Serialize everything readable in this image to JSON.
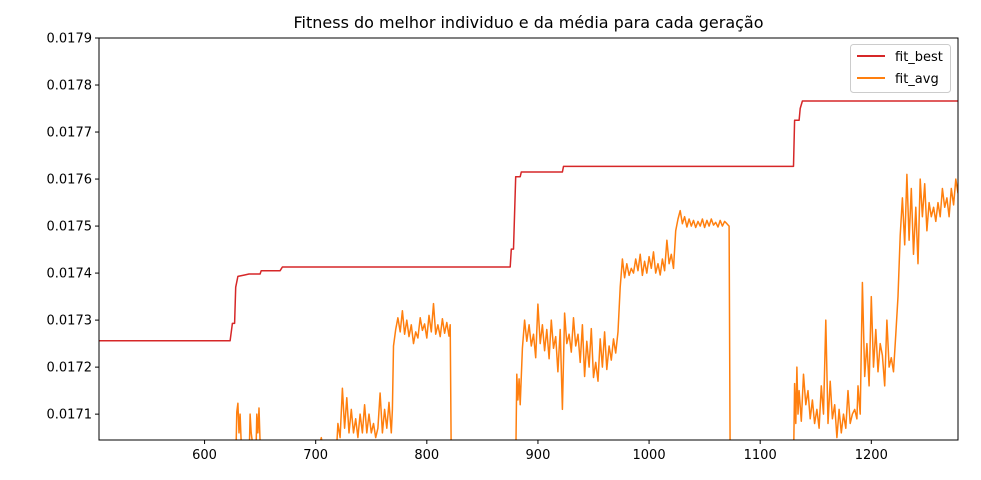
{
  "chart_data": {
    "type": "line",
    "title": "Fitness do melhor individuo e da média para cada geração",
    "xlabel": "",
    "ylabel": "",
    "xlim": [
      505,
      1278
    ],
    "ylim": [
      0.017045,
      0.0179
    ],
    "x_ticks": [
      600,
      700,
      800,
      900,
      1000,
      1100,
      1200
    ],
    "x_tick_labels": [
      "600",
      "700",
      "800",
      "900",
      "1000",
      "1100",
      "1200"
    ],
    "y_ticks": [
      0.0171,
      0.0172,
      0.0173,
      0.0174,
      0.0175,
      0.0176,
      0.0177,
      0.0178,
      0.0179
    ],
    "y_tick_labels": [
      "0.0171",
      "0.0172",
      "0.0173",
      "0.0174",
      "0.0175",
      "0.0176",
      "0.0177",
      "0.0178",
      "0.0179"
    ],
    "grid": false,
    "legend_position": "top-right",
    "series": [
      {
        "name": "fit_best",
        "color": "#d62728",
        "points": [
          [
            505,
            0.017256
          ],
          [
            623,
            0.017256
          ],
          [
            625,
            0.017293
          ],
          [
            627,
            0.017293
          ],
          [
            628,
            0.01737
          ],
          [
            630,
            0.017393
          ],
          [
            636,
            0.017396
          ],
          [
            640,
            0.017398
          ],
          [
            650,
            0.017398
          ],
          [
            651,
            0.017405
          ],
          [
            668,
            0.017405
          ],
          [
            670,
            0.017413
          ],
          [
            875,
            0.017413
          ],
          [
            876,
            0.017451
          ],
          [
            878,
            0.017451
          ],
          [
            880,
            0.017605
          ],
          [
            884,
            0.017605
          ],
          [
            885,
            0.017615
          ],
          [
            922,
            0.017615
          ],
          [
            923,
            0.017627
          ],
          [
            1130,
            0.017627
          ],
          [
            1131,
            0.017725
          ],
          [
            1135,
            0.017725
          ],
          [
            1136,
            0.01775
          ],
          [
            1138,
            0.017766
          ],
          [
            1278,
            0.017766
          ]
        ]
      },
      {
        "name": "fit_avg",
        "color": "#ff7f0e",
        "points": [
          [
            628,
            0.01699
          ],
          [
            629,
            0.017105
          ],
          [
            630,
            0.017123
          ],
          [
            631,
            0.01706
          ],
          [
            632,
            0.0171
          ],
          [
            633,
            0.01704
          ],
          [
            640,
            0.01699
          ],
          [
            641,
            0.0171
          ],
          [
            642,
            0.01706
          ],
          [
            643,
            0.01704
          ],
          [
            646,
            0.01699
          ],
          [
            647,
            0.0171
          ],
          [
            648,
            0.01706
          ],
          [
            649,
            0.017113
          ],
          [
            650,
            0.01704
          ],
          [
            700,
            0.01699
          ],
          [
            705,
            0.01705
          ],
          [
            709,
            0.01699
          ],
          [
            718,
            0.01699
          ],
          [
            720,
            0.01708
          ],
          [
            722,
            0.01705
          ],
          [
            724,
            0.017155
          ],
          [
            726,
            0.01707
          ],
          [
            728,
            0.017135
          ],
          [
            730,
            0.01706
          ],
          [
            732,
            0.01711
          ],
          [
            734,
            0.01706
          ],
          [
            736,
            0.01709
          ],
          [
            738,
            0.01705
          ],
          [
            740,
            0.0171
          ],
          [
            742,
            0.01706
          ],
          [
            744,
            0.01712
          ],
          [
            746,
            0.01706
          ],
          [
            748,
            0.0171
          ],
          [
            750,
            0.01706
          ],
          [
            752,
            0.01708
          ],
          [
            754,
            0.01705
          ],
          [
            756,
            0.01707
          ],
          [
            758,
            0.017145
          ],
          [
            760,
            0.01706
          ],
          [
            762,
            0.01711
          ],
          [
            764,
            0.01707
          ],
          [
            766,
            0.017125
          ],
          [
            768,
            0.01706
          ],
          [
            769,
            0.01711
          ],
          [
            770,
            0.017245
          ],
          [
            772,
            0.01728
          ],
          [
            774,
            0.017305
          ],
          [
            776,
            0.017275
          ],
          [
            778,
            0.01732
          ],
          [
            780,
            0.01727
          ],
          [
            782,
            0.0173
          ],
          [
            784,
            0.017265
          ],
          [
            786,
            0.01729
          ],
          [
            788,
            0.01725
          ],
          [
            790,
            0.017275
          ],
          [
            792,
            0.017262
          ],
          [
            794,
            0.017305
          ],
          [
            796,
            0.017278
          ],
          [
            798,
            0.017292
          ],
          [
            800,
            0.017262
          ],
          [
            802,
            0.01731
          ],
          [
            804,
            0.017275
          ],
          [
            806,
            0.017335
          ],
          [
            808,
            0.01727
          ],
          [
            810,
            0.01729
          ],
          [
            812,
            0.017265
          ],
          [
            814,
            0.017303
          ],
          [
            816,
            0.017272
          ],
          [
            818,
            0.017295
          ],
          [
            820,
            0.017266
          ],
          [
            821,
            0.01729
          ],
          [
            822,
            0.01699
          ],
          [
            880,
            0.01699
          ],
          [
            881,
            0.017185
          ],
          [
            882,
            0.01713
          ],
          [
            883,
            0.017175
          ],
          [
            884,
            0.01712
          ],
          [
            886,
            0.01724
          ],
          [
            888,
            0.0173
          ],
          [
            890,
            0.017255
          ],
          [
            892,
            0.01729
          ],
          [
            894,
            0.017245
          ],
          [
            896,
            0.01727
          ],
          [
            898,
            0.01722
          ],
          [
            900,
            0.017334
          ],
          [
            902,
            0.01725
          ],
          [
            904,
            0.01729
          ],
          [
            906,
            0.017235
          ],
          [
            908,
            0.01728
          ],
          [
            910,
            0.017218
          ],
          [
            912,
            0.0173
          ],
          [
            914,
            0.01724
          ],
          [
            916,
            0.017265
          ],
          [
            918,
            0.01719
          ],
          [
            920,
            0.01728
          ],
          [
            922,
            0.01711
          ],
          [
            924,
            0.017315
          ],
          [
            926,
            0.01725
          ],
          [
            928,
            0.01727
          ],
          [
            930,
            0.017232
          ],
          [
            932,
            0.017305
          ],
          [
            934,
            0.017245
          ],
          [
            936,
            0.01727
          ],
          [
            938,
            0.01721
          ],
          [
            940,
            0.01729
          ],
          [
            942,
            0.01718
          ],
          [
            944,
            0.017255
          ],
          [
            946,
            0.0172
          ],
          [
            948,
            0.017282
          ],
          [
            950,
            0.017178
          ],
          [
            952,
            0.01721
          ],
          [
            954,
            0.01717
          ],
          [
            956,
            0.01726
          ],
          [
            958,
            0.0172
          ],
          [
            960,
            0.017275
          ],
          [
            962,
            0.017195
          ],
          [
            964,
            0.017245
          ],
          [
            966,
            0.017215
          ],
          [
            968,
            0.01726
          ],
          [
            970,
            0.01723
          ],
          [
            972,
            0.017275
          ],
          [
            974,
            0.01737
          ],
          [
            976,
            0.01743
          ],
          [
            978,
            0.01739
          ],
          [
            980,
            0.01742
          ],
          [
            982,
            0.017395
          ],
          [
            984,
            0.01741
          ],
          [
            986,
            0.0174
          ],
          [
            988,
            0.01743
          ],
          [
            990,
            0.017405
          ],
          [
            992,
            0.01744
          ],
          [
            994,
            0.017395
          ],
          [
            996,
            0.017425
          ],
          [
            998,
            0.0174
          ],
          [
            1000,
            0.017435
          ],
          [
            1002,
            0.01741
          ],
          [
            1004,
            0.017445
          ],
          [
            1006,
            0.0174
          ],
          [
            1008,
            0.01742
          ],
          [
            1010,
            0.017396
          ],
          [
            1012,
            0.01743
          ],
          [
            1014,
            0.017405
          ],
          [
            1016,
            0.01747
          ],
          [
            1018,
            0.01742
          ],
          [
            1020,
            0.01744
          ],
          [
            1022,
            0.01741
          ],
          [
            1024,
            0.01749
          ],
          [
            1026,
            0.017515
          ],
          [
            1028,
            0.017533
          ],
          [
            1030,
            0.017505
          ],
          [
            1032,
            0.01752
          ],
          [
            1034,
            0.017498
          ],
          [
            1036,
            0.017515
          ],
          [
            1038,
            0.0175
          ],
          [
            1040,
            0.017512
          ],
          [
            1042,
            0.017497
          ],
          [
            1044,
            0.01751
          ],
          [
            1046,
            0.0175
          ],
          [
            1048,
            0.017515
          ],
          [
            1050,
            0.017497
          ],
          [
            1052,
            0.017512
          ],
          [
            1054,
            0.0175
          ],
          [
            1056,
            0.017515
          ],
          [
            1058,
            0.017502
          ],
          [
            1060,
            0.017508
          ],
          [
            1062,
            0.017498
          ],
          [
            1064,
            0.017512
          ],
          [
            1066,
            0.0175
          ],
          [
            1068,
            0.01751
          ],
          [
            1070,
            0.017505
          ],
          [
            1072,
            0.0175
          ],
          [
            1073,
            0.01699
          ],
          [
            1130,
            0.01699
          ],
          [
            1131,
            0.017165
          ],
          [
            1132,
            0.01708
          ],
          [
            1133,
            0.0172
          ],
          [
            1134,
            0.0171
          ],
          [
            1135,
            0.01715
          ],
          [
            1137,
            0.017085
          ],
          [
            1139,
            0.017185
          ],
          [
            1141,
            0.01712
          ],
          [
            1143,
            0.01715
          ],
          [
            1145,
            0.01709
          ],
          [
            1147,
            0.01713
          ],
          [
            1149,
            0.01708
          ],
          [
            1151,
            0.01711
          ],
          [
            1153,
            0.01707
          ],
          [
            1155,
            0.01716
          ],
          [
            1157,
            0.0171
          ],
          [
            1159,
            0.0173
          ],
          [
            1161,
            0.01708
          ],
          [
            1163,
            0.01717
          ],
          [
            1165,
            0.01709
          ],
          [
            1167,
            0.01712
          ],
          [
            1169,
            0.01705
          ],
          [
            1171,
            0.01711
          ],
          [
            1173,
            0.01706
          ],
          [
            1175,
            0.0171
          ],
          [
            1177,
            0.01707
          ],
          [
            1179,
            0.01715
          ],
          [
            1181,
            0.01708
          ],
          [
            1183,
            0.0171
          ],
          [
            1185,
            0.01711
          ],
          [
            1187,
            0.01709
          ],
          [
            1188,
            0.01716
          ],
          [
            1190,
            0.0171
          ],
          [
            1192,
            0.01738
          ],
          [
            1194,
            0.01718
          ],
          [
            1196,
            0.01725
          ],
          [
            1198,
            0.01716
          ],
          [
            1200,
            0.01735
          ],
          [
            1202,
            0.0172
          ],
          [
            1204,
            0.01728
          ],
          [
            1206,
            0.01719
          ],
          [
            1208,
            0.01725
          ],
          [
            1210,
            0.017225
          ],
          [
            1212,
            0.01716
          ],
          [
            1214,
            0.0173
          ],
          [
            1216,
            0.0172
          ],
          [
            1218,
            0.01722
          ],
          [
            1220,
            0.01719
          ],
          [
            1222,
            0.01727
          ],
          [
            1224,
            0.01735
          ],
          [
            1226,
            0.01748
          ],
          [
            1228,
            0.01756
          ],
          [
            1230,
            0.01746
          ],
          [
            1232,
            0.01761
          ],
          [
            1234,
            0.01747
          ],
          [
            1236,
            0.01758
          ],
          [
            1238,
            0.01744
          ],
          [
            1240,
            0.01754
          ],
          [
            1242,
            0.01742
          ],
          [
            1244,
            0.0176
          ],
          [
            1246,
            0.01752
          ],
          [
            1248,
            0.01759
          ],
          [
            1250,
            0.01749
          ],
          [
            1252,
            0.01755
          ],
          [
            1254,
            0.01752
          ],
          [
            1256,
            0.01754
          ],
          [
            1258,
            0.01751
          ],
          [
            1260,
            0.01755
          ],
          [
            1262,
            0.01752
          ],
          [
            1264,
            0.01758
          ],
          [
            1266,
            0.01754
          ],
          [
            1268,
            0.01756
          ],
          [
            1270,
            0.01752
          ],
          [
            1272,
            0.01758
          ],
          [
            1274,
            0.017545
          ],
          [
            1276,
            0.0176
          ],
          [
            1278,
            0.01757
          ]
        ]
      }
    ]
  }
}
